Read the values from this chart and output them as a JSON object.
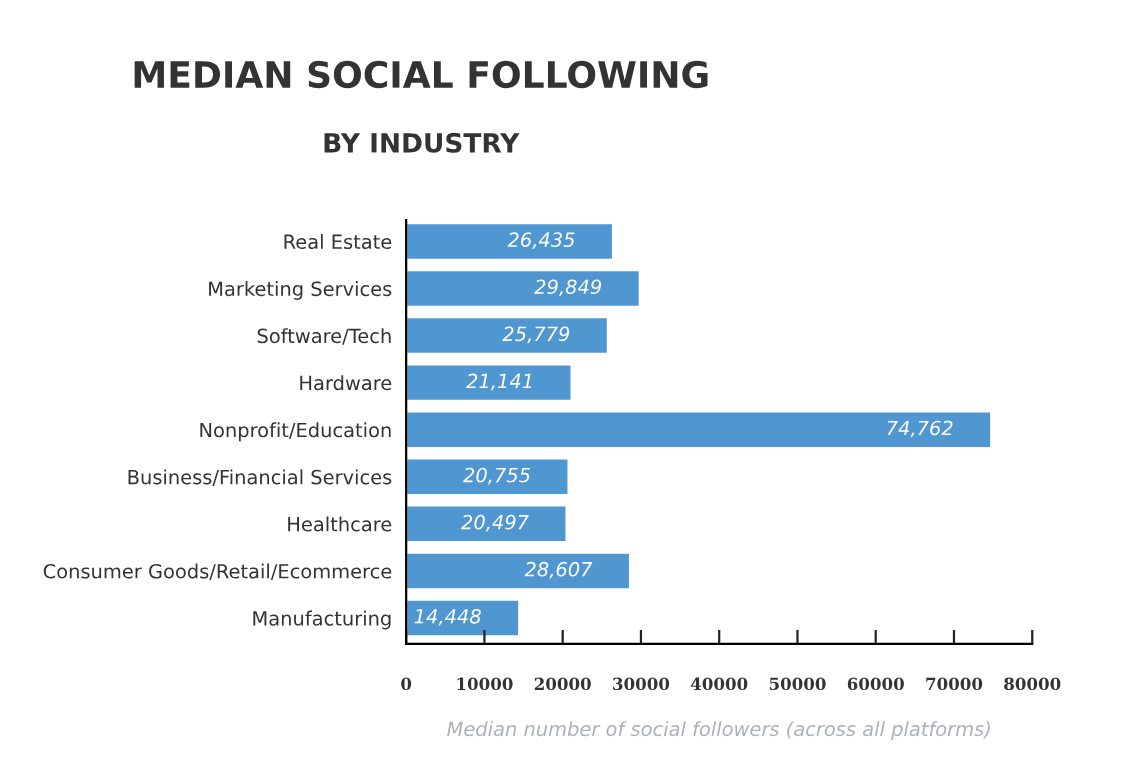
{
  "chart_data": {
    "type": "bar",
    "orientation": "horizontal",
    "title": "MEDIAN SOCIAL FOLLOWING",
    "subtitle": "BY INDUSTRY",
    "xlabel": "Median number of social followers (across all platforms)",
    "categories": [
      "Real Estate",
      "Marketing Services",
      "Software/Tech",
      "Hardware",
      "Nonprofit/Education",
      "Business/Financial Services",
      "Healthcare",
      "Consumer Goods/Retail/Ecommerce",
      "Manufacturing"
    ],
    "values": [
      26435,
      29849,
      25779,
      21141,
      74762,
      20755,
      20497,
      28607,
      14448
    ],
    "value_labels": [
      "26,435",
      "29,849",
      "25,779",
      "21,141",
      "74,762",
      "20,755",
      "20,497",
      "28,607",
      "14,448"
    ],
    "color": "#5097d2",
    "xlim": [
      0,
      80000
    ],
    "xticks": [
      0,
      10000,
      20000,
      30000,
      40000,
      50000,
      60000,
      70000,
      80000
    ],
    "grid": false,
    "legend": false
  }
}
